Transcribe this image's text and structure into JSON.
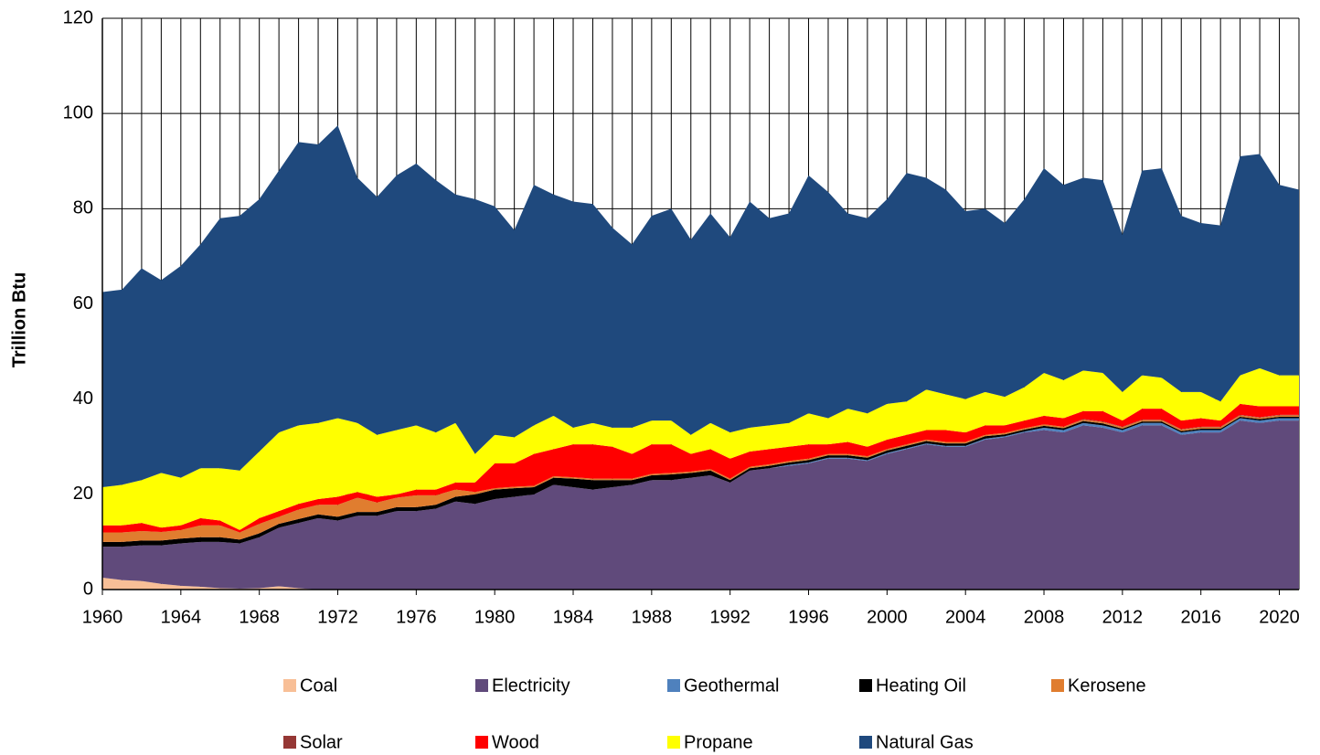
{
  "chart_data": {
    "type": "stacked_area",
    "y_label": "Trillion Btu",
    "x": [
      1960,
      1961,
      1962,
      1963,
      1964,
      1965,
      1966,
      1967,
      1968,
      1969,
      1970,
      1971,
      1972,
      1973,
      1974,
      1975,
      1976,
      1977,
      1978,
      1979,
      1980,
      1981,
      1982,
      1983,
      1984,
      1985,
      1986,
      1987,
      1988,
      1989,
      1990,
      1991,
      1992,
      1993,
      1994,
      1995,
      1996,
      1997,
      1998,
      1999,
      2000,
      2001,
      2002,
      2003,
      2004,
      2005,
      2006,
      2007,
      2008,
      2009,
      2010,
      2011,
      2012,
      2013,
      2014,
      2015,
      2016,
      2017,
      2018,
      2019,
      2020,
      2021
    ],
    "xlim": [
      1960,
      2021
    ],
    "xticks": [
      1960,
      1964,
      1968,
      1972,
      1976,
      1980,
      1984,
      1988,
      1992,
      1996,
      2000,
      2004,
      2008,
      2012,
      2016,
      2020
    ],
    "ylim": [
      0,
      120
    ],
    "yticks": [
      0,
      20,
      40,
      60,
      80,
      100,
      120
    ],
    "grid": true,
    "legend": "bottom",
    "series": [
      {
        "name": "Coal",
        "color": "#f8bf97",
        "values": [
          2.5,
          2,
          1.8,
          1.2,
          0.8,
          0.6,
          0.3,
          0.2,
          0.3,
          0.7,
          0.3,
          0,
          0,
          0,
          0,
          0,
          0,
          0,
          0,
          0,
          0,
          0,
          0,
          0,
          0,
          0,
          0,
          0,
          0,
          0,
          0,
          0,
          0,
          0,
          0,
          0,
          0,
          0,
          0,
          0,
          0,
          0,
          0,
          0,
          0,
          0,
          0,
          0,
          0,
          0,
          0,
          0,
          0,
          0,
          0,
          0,
          0,
          0,
          0,
          0,
          0,
          0
        ]
      },
      {
        "name": "Electricity",
        "color": "#604a7b",
        "values": [
          6.5,
          7,
          7.5,
          8.1,
          8.9,
          9.4,
          9.7,
          9.5,
          10.7,
          12.3,
          13.7,
          15,
          14.5,
          15.5,
          15.5,
          16.5,
          16.5,
          17,
          18.5,
          18,
          19,
          19.5,
          20,
          22,
          21.5,
          21,
          21.5,
          22,
          23,
          23,
          23.5,
          24,
          22.5,
          25,
          25.5,
          26,
          26.5,
          27.5,
          27.5,
          27,
          28.5,
          29.5,
          30.5,
          30,
          30,
          31.5,
          32,
          33,
          33.5,
          33,
          34.5,
          34,
          33,
          34.5,
          34.5,
          32.5,
          33,
          33,
          35.5,
          35,
          35.5,
          35.5
        ]
      },
      {
        "name": "Geothermal",
        "color": "#4f81bd",
        "values": [
          0,
          0,
          0,
          0,
          0,
          0,
          0,
          0,
          0,
          0,
          0,
          0,
          0,
          0,
          0,
          0,
          0,
          0,
          0,
          0,
          0,
          0,
          0,
          0,
          0,
          0,
          0,
          0,
          0,
          0,
          0,
          0,
          0,
          0,
          0,
          0.2,
          0.2,
          0.2,
          0.2,
          0.2,
          0.2,
          0.2,
          0.2,
          0.2,
          0.2,
          0.2,
          0.2,
          0.2,
          0.5,
          0.5,
          0.5,
          0.5,
          0.5,
          0.5,
          0.5,
          0.5,
          0.5,
          0.5,
          0.5,
          0.5,
          0.5,
          0.5
        ]
      },
      {
        "name": "Heating Oil",
        "color": "#000000",
        "values": [
          1,
          1,
          1,
          1,
          1,
          1,
          1,
          0.8,
          0.8,
          0.8,
          0.8,
          0.8,
          0.8,
          0.8,
          0.8,
          0.8,
          0.8,
          0.8,
          1,
          2,
          2,
          1.8,
          1.5,
          1.5,
          1.8,
          2,
          1.5,
          1,
          1,
          1.2,
          1,
          1,
          0.5,
          0.5,
          0.5,
          0.5,
          0.5,
          0.5,
          0.5,
          0.5,
          0.5,
          0.5,
          0.5,
          0.5,
          0.5,
          0.5,
          0.4,
          0.4,
          0.4,
          0.4,
          0.4,
          0.4,
          0.3,
          0.3,
          0.3,
          0.3,
          0.3,
          0.3,
          0.3,
          0.3,
          0.3,
          0.3
        ]
      },
      {
        "name": "Kerosene",
        "color": "#e07d2f",
        "values": [
          2,
          2,
          2,
          1.8,
          1.8,
          2.5,
          2.5,
          1.5,
          2,
          1.5,
          2,
          2,
          2.5,
          3,
          2,
          2,
          2.5,
          2,
          1.5,
          0.5,
          0.3,
          0.3,
          0.3,
          0.3,
          0.3,
          0.3,
          0.3,
          0.3,
          0.3,
          0.3,
          0.3,
          0.3,
          0.3,
          0.3,
          0.3,
          0.3,
          0.3,
          0.3,
          0.3,
          0.3,
          0.3,
          0.3,
          0.3,
          0.3,
          0.3,
          0.3,
          0.3,
          0.3,
          0.3,
          0.3,
          0.3,
          0.3,
          0.3,
          0.3,
          0.3,
          0.3,
          0.3,
          0.3,
          0.3,
          0.3,
          0.3,
          0.3
        ]
      },
      {
        "name": "Solar",
        "color": "#953735",
        "values": [
          0,
          0,
          0,
          0,
          0,
          0,
          0,
          0,
          0,
          0,
          0,
          0,
          0,
          0,
          0,
          0,
          0,
          0,
          0,
          0,
          0,
          0,
          0,
          0,
          0,
          0,
          0,
          0,
          0,
          0,
          0,
          0,
          0,
          0,
          0,
          0,
          0,
          0,
          0,
          0,
          0,
          0,
          0,
          0,
          0,
          0,
          0,
          0,
          0,
          0,
          0.1,
          0.1,
          0.1,
          0.1,
          0.1,
          0.1,
          0.1,
          0.1,
          0.1,
          0.1,
          0.1,
          0.1
        ]
      },
      {
        "name": "Wood",
        "color": "#ff0000",
        "values": [
          1.5,
          1.5,
          1.7,
          0.9,
          1,
          1.5,
          1,
          0.5,
          1.2,
          1.2,
          1.2,
          1.2,
          1.7,
          1.2,
          1.2,
          0.7,
          1.2,
          1.2,
          1.5,
          2,
          5.2,
          4.9,
          6.7,
          5.7,
          6.9,
          7.2,
          6.7,
          5.2,
          6.2,
          6,
          3.7,
          4.2,
          4.2,
          3.2,
          3.2,
          3,
          3,
          2,
          2.5,
          2,
          2,
          2,
          2,
          2.5,
          2,
          2,
          1.6,
          1.6,
          1.8,
          1.8,
          1.7,
          2.2,
          1.3,
          2.3,
          2.3,
          1.8,
          1.8,
          1.3,
          2.3,
          2.3,
          1.8,
          1.8
        ]
      },
      {
        "name": "Propane",
        "color": "#ffff00",
        "values": [
          8,
          8.5,
          9,
          11.5,
          10,
          10.5,
          11,
          12.5,
          14,
          16.5,
          16.5,
          16,
          16.5,
          14.5,
          13,
          13.5,
          13.5,
          12,
          12.5,
          6,
          6,
          5.5,
          6,
          7,
          3.5,
          4.5,
          4,
          5.5,
          5,
          5,
          4,
          5.5,
          5.5,
          5,
          5,
          5,
          6.5,
          5.5,
          7,
          7,
          7.5,
          7,
          8.5,
          7.5,
          7,
          7,
          6,
          7,
          9,
          8,
          8.5,
          8,
          6,
          7,
          6.5,
          6,
          5.5,
          4,
          6,
          8,
          6.5,
          6.5
        ]
      },
      {
        "name": "Natural Gas",
        "color": "#1f497d",
        "values": [
          41,
          41,
          44.5,
          40.5,
          44.5,
          47,
          52.5,
          53.5,
          53,
          55,
          59.5,
          58.5,
          61.5,
          51.5,
          50,
          53.5,
          55,
          53,
          48,
          53.5,
          48,
          43.5,
          50.5,
          46.5,
          47.5,
          46,
          42,
          38.5,
          43,
          44.5,
          41,
          44,
          41,
          47.5,
          43.5,
          44,
          50,
          47.5,
          41,
          41,
          43,
          48,
          44.5,
          43,
          39.5,
          38.5,
          36.5,
          39.5,
          43,
          41,
          40.5,
          40.5,
          33,
          43,
          44,
          37,
          35.5,
          37,
          46,
          45,
          40,
          39
        ]
      }
    ]
  }
}
